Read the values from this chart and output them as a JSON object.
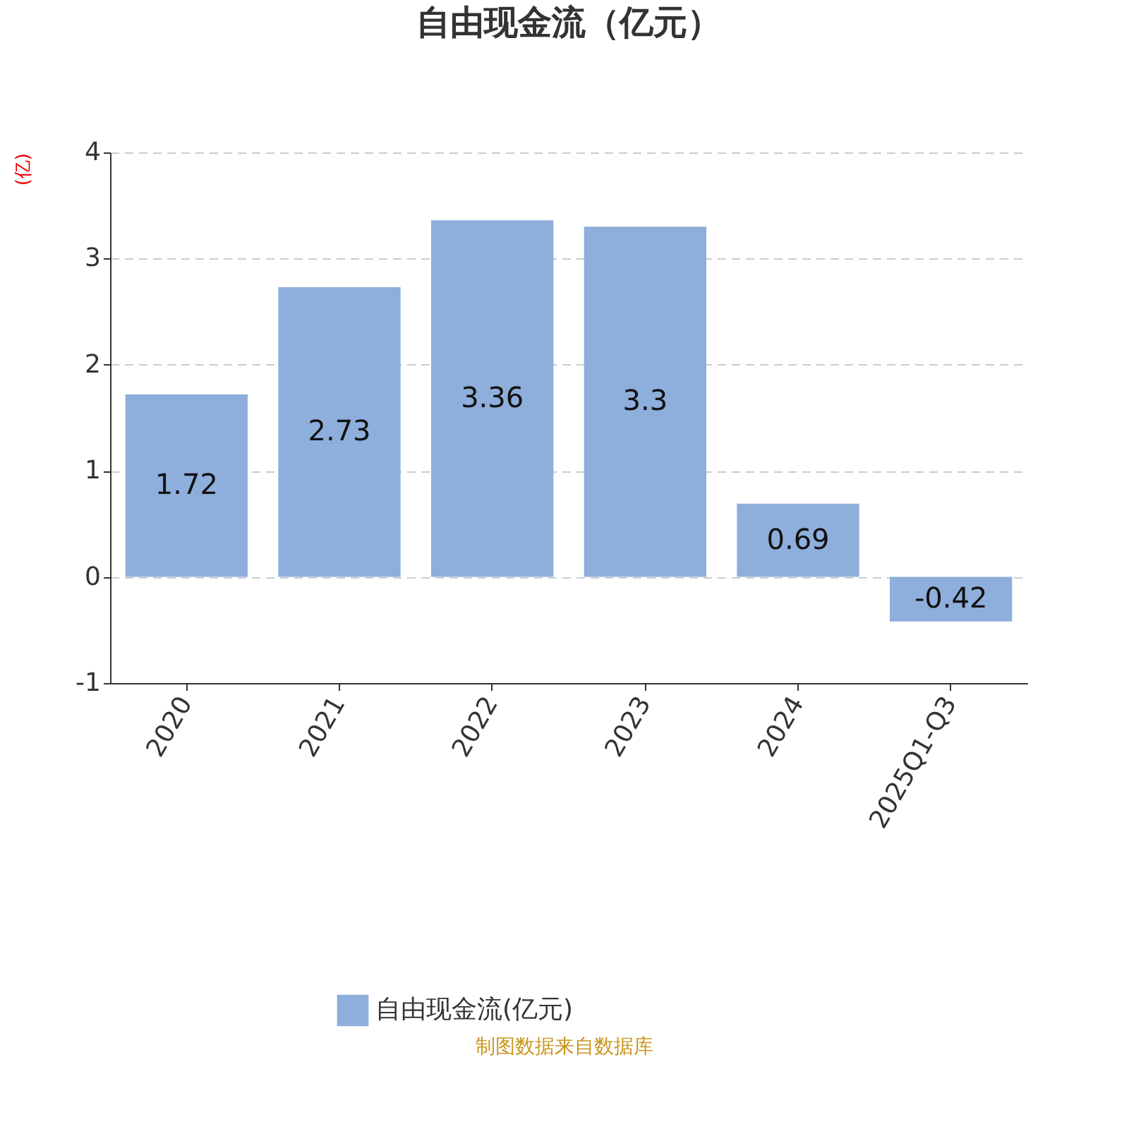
{
  "chart_data": {
    "type": "bar",
    "title": "自由现金流（亿元）",
    "ylabel": "(亿)",
    "categories": [
      "2020",
      "2021",
      "2022",
      "2023",
      "2024",
      "2025Q1-Q3"
    ],
    "series": [
      {
        "name": "自由现金流(亿元)",
        "color": "#8eaedb",
        "values": [
          1.72,
          2.73,
          3.36,
          3.3,
          0.69,
          -0.42
        ]
      }
    ],
    "ylim": [
      -1,
      4
    ],
    "yticks": [
      -1,
      0,
      1,
      2,
      3,
      4
    ],
    "grid": "y",
    "legend": "bottom",
    "data_labels": true,
    "annotations": [
      "制图数据来自数据库"
    ]
  }
}
